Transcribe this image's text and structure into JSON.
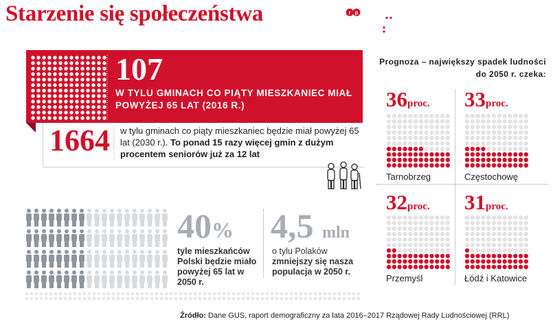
{
  "title": "Starzenie się społeczeństwa",
  "logo": "RP",
  "headline": {
    "value": "107",
    "text": "W TYLU GMINACH CO PIĄTY MIESZKANIEC MIAŁ POWYŻEJ 65 LAT (2016 R.)"
  },
  "second": {
    "value": "1664",
    "text_plain": "w tylu gminach co piąty mieszkaniec będzie miał powyżej 65 lat (2030 r.).",
    "text_bold": "To ponad 15 razy więcej gmin z dużym procentem seniorów już za 12 lat"
  },
  "stat_left": {
    "value": "40",
    "unit": "%",
    "label": "tyle mieszkańców Polski będzie miało powyżej 65 lat w 2050 r.",
    "fraction_highlighted": 0.4
  },
  "stat_right": {
    "value": "4,5",
    "unit": "mln",
    "label_plain": "o tylu Polaków",
    "label_bold": "zmniejszy się nasza populacja w 2050 r."
  },
  "forecast_title": "Prognoza – największy spadek ludności do 2050 r. czeka:",
  "cities": [
    {
      "name": "Tarnobrzeg",
      "value": "36",
      "unit": "proc.",
      "fraction": 0.36
    },
    {
      "name": "Częstochowę",
      "value": "33",
      "unit": "proc.",
      "fraction": 0.33
    },
    {
      "name": "Przemyśl",
      "value": "32",
      "unit": "proc.",
      "fraction": 0.32
    },
    {
      "name": "Łódź i Katowice",
      "value": "31",
      "unit": "proc.",
      "fraction": 0.31
    }
  ],
  "source": {
    "label": "Źródło:",
    "text": "Dane GUS, raport demograficzny za lata 2016–2017 Rządowej Rady Ludnościowej (RRL)"
  },
  "colors": {
    "red": "#d0112b",
    "dark_red": "#8e0c1d",
    "gray": "#a8adb4",
    "light_gray": "#e3e3e3"
  }
}
